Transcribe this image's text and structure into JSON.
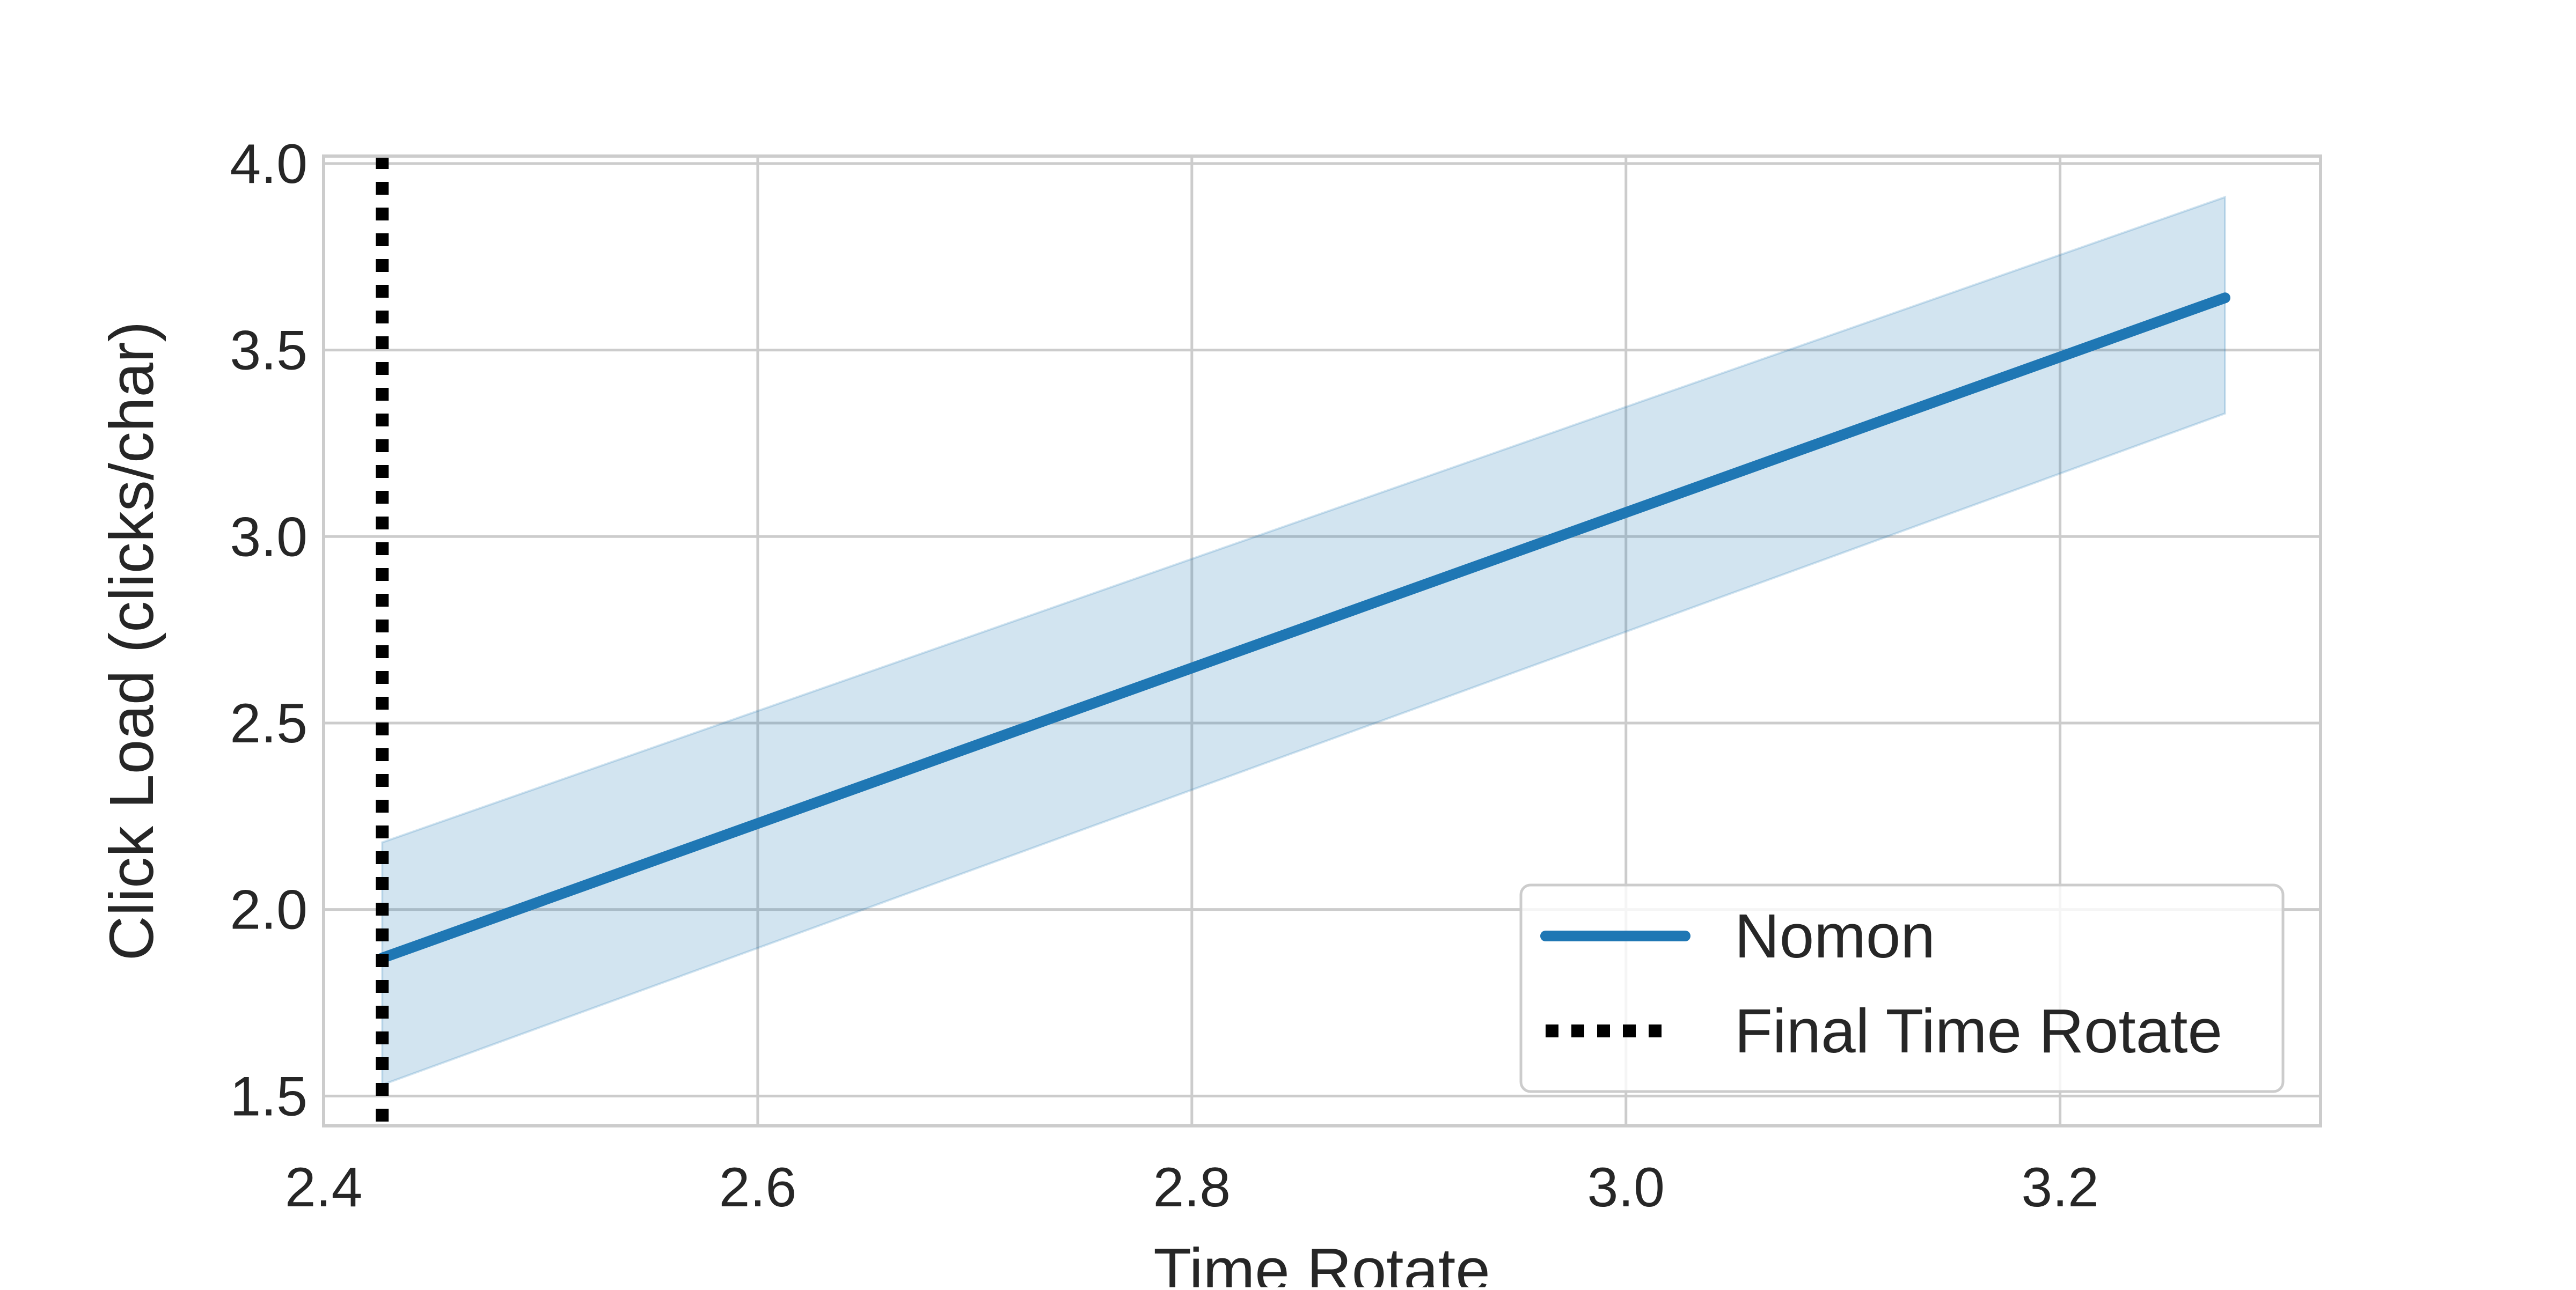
{
  "chart_data": {
    "type": "line",
    "title": "",
    "xlabel": "Time Rotate",
    "ylabel": "Click Load (clicks/char)",
    "xlim": [
      2.4,
      3.32
    ],
    "ylim": [
      1.42,
      4.02
    ],
    "x_ticks": [
      "2.4",
      "2.6",
      "2.8",
      "3.0",
      "3.2"
    ],
    "y_ticks": [
      "1.5",
      "2.0",
      "2.5",
      "3.0",
      "3.5",
      "4.0"
    ],
    "grid": true,
    "legend_position": "lower-right",
    "series": [
      {
        "name": "Nomon",
        "color": "#1f77b4",
        "x": [
          2.427,
          3.276
        ],
        "y": [
          1.87,
          3.64
        ],
        "band_lower": [
          1.53,
          3.33
        ],
        "band_upper": [
          2.18,
          3.91
        ]
      }
    ],
    "vlines": [
      {
        "name": "Final Time Rotate",
        "x": 2.427,
        "color": "#000000",
        "style": "dotted"
      }
    ],
    "legend": [
      "Nomon",
      "Final Time Rotate"
    ]
  }
}
